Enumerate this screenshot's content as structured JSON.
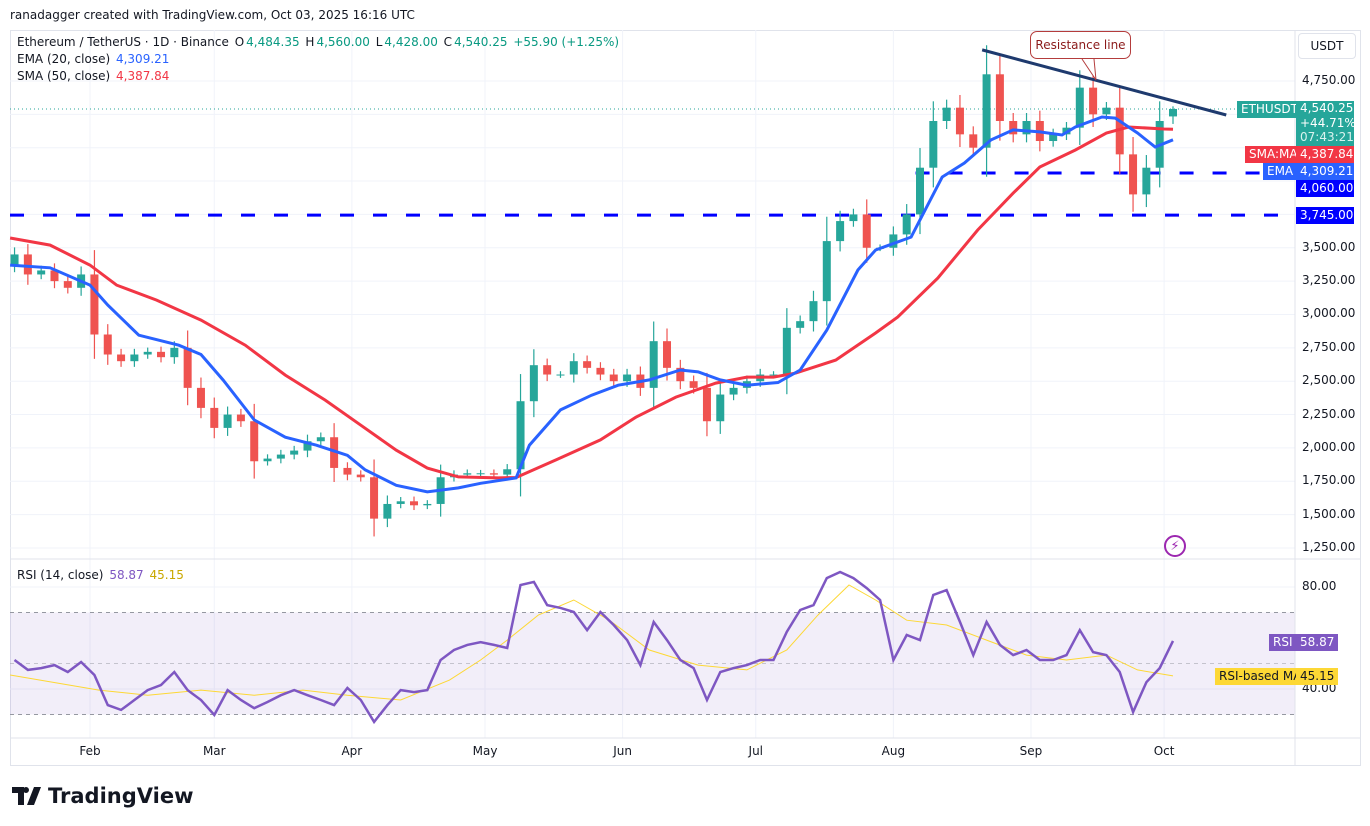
{
  "header": {
    "credit": "ranadagger created with TradingView.com, Oct 03, 2025 16:16 UTC"
  },
  "legend": {
    "symbol": "Ethereum / TetherUS · 1D · Binance",
    "o_label": "O",
    "o": "4,484.35",
    "h_label": "H",
    "h": "4,560.00",
    "l_label": "L",
    "l": "4,428.00",
    "c_label": "C",
    "c": "4,540.25",
    "change": "+55.90 (+1.25%)",
    "ema_label": "EMA (20, close)",
    "ema_value": "4,309.21",
    "sma_label": "SMA (50, close)",
    "sma_value": "4,387.84"
  },
  "price_axis": {
    "currency": "USDT",
    "ticks": [
      "4,750.00",
      "3,500.00",
      "3,250.00",
      "3,000.00",
      "2,750.00",
      "2,500.00",
      "2,250.00",
      "2,000.00",
      "1,750.00",
      "1,500.00",
      "1,250.00"
    ]
  },
  "labels": {
    "symbol": "ETHUSDT",
    "price": "4,540.25",
    "change_pct": "+44.71%",
    "countdown": "07:43:21",
    "sma_tag": "SMA:MA",
    "sma_price": "4,387.84",
    "ema_tag": "EMA",
    "ema_price": "4,309.21",
    "support_high": "4,060.00",
    "support_low": "3,745.00"
  },
  "annotation": {
    "text": "Resistance line"
  },
  "rsi": {
    "legend_label": "RSI (14, close)",
    "value": "58.87",
    "ma_value": "45.15",
    "tag": "RSI",
    "ma_tag": "RSI-based MA",
    "ticks": [
      "80.00",
      "40.00"
    ]
  },
  "time_axis": {
    "labels": [
      "Feb",
      "Mar",
      "Apr",
      "May",
      "Jun",
      "Jul",
      "Aug",
      "Sep",
      "Oct"
    ]
  },
  "branding": {
    "name": "TradingView"
  },
  "colors": {
    "up": "#26a69a",
    "down": "#ef5350",
    "ema": "#2962ff",
    "sma": "#f23645",
    "rsi": "#7e57c2",
    "rsi_ma": "#fdd835",
    "levels": "#0000ff",
    "resistance": "#1e3a6e",
    "accent_green": "#089981"
  },
  "chart_data": {
    "type": "candlestick",
    "ylim": [
      1175,
      5132
    ],
    "y_ticks": [
      1250,
      1500,
      1750,
      2000,
      2250,
      2500,
      2750,
      3000,
      3250,
      3500,
      3750,
      4000,
      4250,
      4500,
      4750
    ],
    "x_ticks": [
      "2025-02-01",
      "2025-03-01",
      "2025-04-01",
      "2025-05-01",
      "2025-06-01",
      "2025-07-01",
      "2025-08-01",
      "2025-09-01",
      "2025-10-01"
    ],
    "candles_columns": [
      "date",
      "close",
      "rsi"
    ],
    "candles": [
      [
        "2025-01-12",
        3370,
        49.4
      ],
      [
        "2025-01-15",
        3450,
        51.4
      ],
      [
        "2025-01-18",
        3300,
        47.5
      ],
      [
        "2025-01-21",
        3330,
        48.2
      ],
      [
        "2025-01-24",
        3250,
        49.4
      ],
      [
        "2025-01-27",
        3200,
        46.7
      ],
      [
        "2025-01-30",
        3300,
        50.6
      ],
      [
        "2025-02-02",
        2850,
        45.5
      ],
      [
        "2025-02-05",
        2700,
        33.7
      ],
      [
        "2025-02-08",
        2650,
        31.8
      ],
      [
        "2025-02-11",
        2700,
        35.7
      ],
      [
        "2025-02-14",
        2720,
        39.6
      ],
      [
        "2025-02-17",
        2680,
        41.6
      ],
      [
        "2025-02-20",
        2750,
        46.7
      ],
      [
        "2025-02-23",
        2450,
        39.6
      ],
      [
        "2025-02-26",
        2300,
        35.7
      ],
      [
        "2025-03-01",
        2150,
        29.8
      ],
      [
        "2025-03-04",
        2250,
        39.6
      ],
      [
        "2025-03-07",
        2200,
        35.7
      ],
      [
        "2025-03-10",
        1900,
        32.5
      ],
      [
        "2025-03-13",
        1920,
        34.9
      ],
      [
        "2025-03-16",
        1950,
        37.6
      ],
      [
        "2025-03-19",
        1980,
        39.6
      ],
      [
        "2025-03-22",
        2050,
        37.6
      ],
      [
        "2025-03-25",
        2080,
        35.7
      ],
      [
        "2025-03-28",
        1850,
        33.7
      ],
      [
        "2025-03-31",
        1800,
        40.4
      ],
      [
        "2025-04-03",
        1780,
        35.7
      ],
      [
        "2025-04-06",
        1470,
        27.1
      ],
      [
        "2025-04-09",
        1580,
        33.7
      ],
      [
        "2025-04-12",
        1600,
        39.6
      ],
      [
        "2025-04-15",
        1570,
        38.8
      ],
      [
        "2025-04-18",
        1580,
        39.6
      ],
      [
        "2025-04-21",
        1780,
        51.4
      ],
      [
        "2025-04-24",
        1800,
        55.3
      ],
      [
        "2025-04-27",
        1810,
        57.3
      ],
      [
        "2025-04-30",
        1810,
        58.4
      ],
      [
        "2025-05-03",
        1800,
        57.3
      ],
      [
        "2025-05-06",
        1840,
        56.1
      ],
      [
        "2025-05-09",
        2350,
        80.8
      ],
      [
        "2025-05-12",
        2620,
        82.0
      ],
      [
        "2025-05-15",
        2550,
        72.9
      ],
      [
        "2025-05-18",
        2550,
        71.8
      ],
      [
        "2025-05-21",
        2650,
        70.2
      ],
      [
        "2025-05-24",
        2600,
        63.1
      ],
      [
        "2025-05-27",
        2550,
        70.2
      ],
      [
        "2025-05-30",
        2500,
        65.1
      ],
      [
        "2025-06-02",
        2550,
        59.2
      ],
      [
        "2025-06-05",
        2450,
        49.4
      ],
      [
        "2025-06-08",
        2800,
        66.3
      ],
      [
        "2025-06-11",
        2600,
        59.2
      ],
      [
        "2025-06-14",
        2500,
        51.4
      ],
      [
        "2025-06-17",
        2450,
        48.2
      ],
      [
        "2025-06-20",
        2200,
        35.7
      ],
      [
        "2025-06-23",
        2400,
        46.7
      ],
      [
        "2025-06-26",
        2450,
        48.2
      ],
      [
        "2025-06-29",
        2500,
        49.4
      ],
      [
        "2025-07-02",
        2550,
        51.4
      ],
      [
        "2025-07-05",
        2550,
        51.4
      ],
      [
        "2025-07-08",
        2900,
        62.4
      ],
      [
        "2025-07-11",
        2950,
        71.0
      ],
      [
        "2025-07-14",
        3100,
        72.9
      ],
      [
        "2025-07-17",
        3550,
        83.5
      ],
      [
        "2025-07-20",
        3700,
        85.9
      ],
      [
        "2025-07-23",
        3750,
        83.5
      ],
      [
        "2025-07-26",
        3500,
        79.6
      ],
      [
        "2025-07-29",
        3500,
        74.9
      ],
      [
        "2025-08-01",
        3600,
        51.4
      ],
      [
        "2025-08-04",
        3750,
        61.2
      ],
      [
        "2025-08-07",
        4100,
        59.2
      ],
      [
        "2025-08-10",
        4450,
        76.9
      ],
      [
        "2025-08-13",
        4550,
        78.8
      ],
      [
        "2025-08-16",
        4350,
        66.3
      ],
      [
        "2025-08-19",
        4250,
        53.3
      ],
      [
        "2025-08-22",
        4800,
        66.3
      ],
      [
        "2025-08-25",
        4450,
        57.3
      ],
      [
        "2025-08-28",
        4350,
        53.3
      ],
      [
        "2025-08-31",
        4450,
        55.3
      ],
      [
        "2025-09-03",
        4300,
        51.4
      ],
      [
        "2025-09-06",
        4350,
        51.4
      ],
      [
        "2025-09-09",
        4400,
        53.3
      ],
      [
        "2025-09-12",
        4700,
        63.1
      ],
      [
        "2025-09-15",
        4500,
        54.5
      ],
      [
        "2025-09-18",
        4550,
        53.3
      ],
      [
        "2025-09-21",
        4200,
        46.7
      ],
      [
        "2025-09-24",
        3900,
        31.0
      ],
      [
        "2025-09-27",
        4100,
        42.7
      ],
      [
        "2025-09-30",
        4450,
        48.2
      ],
      [
        "2025-10-03",
        4540.25,
        58.87
      ]
    ],
    "last_candle": {
      "date": "2025-10-03",
      "open": 4484.35,
      "high": 4560.0,
      "low": 4428.0,
      "close": 4540.25
    },
    "ema20": [
      [
        "2025-01-14",
        3370
      ],
      [
        "2025-01-23",
        3350
      ],
      [
        "2025-02-01",
        3220
      ],
      [
        "2025-02-05",
        3070
      ],
      [
        "2025-02-12",
        2845
      ],
      [
        "2025-02-21",
        2770
      ],
      [
        "2025-02-26",
        2700
      ],
      [
        "2025-03-03",
        2508
      ],
      [
        "2025-03-10",
        2210
      ],
      [
        "2025-03-17",
        2080
      ],
      [
        "2025-03-24",
        2020
      ],
      [
        "2025-03-31",
        1945
      ],
      [
        "2025-04-04",
        1835
      ],
      [
        "2025-04-11",
        1720
      ],
      [
        "2025-04-18",
        1670
      ],
      [
        "2025-04-25",
        1700
      ],
      [
        "2025-04-30",
        1735
      ],
      [
        "2025-05-08",
        1775
      ],
      [
        "2025-05-11",
        2020
      ],
      [
        "2025-05-18",
        2285
      ],
      [
        "2025-05-25",
        2395
      ],
      [
        "2025-05-31",
        2470
      ],
      [
        "2025-06-07",
        2510
      ],
      [
        "2025-06-14",
        2584
      ],
      [
        "2025-06-18",
        2570
      ],
      [
        "2025-06-23",
        2510
      ],
      [
        "2025-06-29",
        2470
      ],
      [
        "2025-07-06",
        2490
      ],
      [
        "2025-07-11",
        2584
      ],
      [
        "2025-07-17",
        2883
      ],
      [
        "2025-07-24",
        3333
      ],
      [
        "2025-07-28",
        3483
      ],
      [
        "2025-08-05",
        3580
      ],
      [
        "2025-08-12",
        4030
      ],
      [
        "2025-08-17",
        4135
      ],
      [
        "2025-08-23",
        4308
      ],
      [
        "2025-08-28",
        4383
      ],
      [
        "2025-09-03",
        4368
      ],
      [
        "2025-09-08",
        4345
      ],
      [
        "2025-09-11",
        4405
      ],
      [
        "2025-09-17",
        4480
      ],
      [
        "2025-09-20",
        4472
      ],
      [
        "2025-09-25",
        4360
      ],
      [
        "2025-09-29",
        4255
      ],
      [
        "2025-10-03",
        4309.21
      ]
    ],
    "sma50": [
      [
        "2025-01-14",
        3573
      ],
      [
        "2025-01-23",
        3520
      ],
      [
        "2025-02-01",
        3370
      ],
      [
        "2025-02-07",
        3220
      ],
      [
        "2025-02-16",
        3108
      ],
      [
        "2025-02-26",
        2958
      ],
      [
        "2025-03-08",
        2770
      ],
      [
        "2025-03-17",
        2546
      ],
      [
        "2025-03-26",
        2358
      ],
      [
        "2025-04-03",
        2170
      ],
      [
        "2025-04-11",
        1983
      ],
      [
        "2025-04-18",
        1849
      ],
      [
        "2025-04-25",
        1783
      ],
      [
        "2025-05-04",
        1775
      ],
      [
        "2025-05-08",
        1778
      ],
      [
        "2025-05-17",
        1910
      ],
      [
        "2025-05-27",
        2060
      ],
      [
        "2025-06-04",
        2230
      ],
      [
        "2025-06-13",
        2381
      ],
      [
        "2025-06-22",
        2486
      ],
      [
        "2025-06-29",
        2531
      ],
      [
        "2025-07-05",
        2531
      ],
      [
        "2025-07-10",
        2561
      ],
      [
        "2025-07-19",
        2658
      ],
      [
        "2025-07-28",
        2861
      ],
      [
        "2025-08-02",
        2981
      ],
      [
        "2025-08-11",
        3273
      ],
      [
        "2025-08-20",
        3633
      ],
      [
        "2025-08-28",
        3910
      ],
      [
        "2025-09-03",
        4105
      ],
      [
        "2025-09-11",
        4233
      ],
      [
        "2025-09-18",
        4360
      ],
      [
        "2025-09-23",
        4405
      ],
      [
        "2025-10-01",
        4390
      ],
      [
        "2025-10-03",
        4387.84
      ]
    ],
    "levels": [
      {
        "value": 4060,
        "from": "2025-08-06"
      },
      {
        "value": 3745,
        "from": "2025-01-12"
      }
    ],
    "resistance_line": [
      [
        "2025-08-21",
        4983
      ],
      [
        "2025-10-15",
        4495
      ]
    ],
    "rsi_ylim": [
      20.8,
      90.6
    ],
    "rsi_bands": [
      30,
      50,
      70
    ],
    "rsi_ma": [
      [
        "2025-01-14",
        45.5
      ],
      [
        "2025-02-03",
        39.6
      ],
      [
        "2025-02-14",
        37.6
      ],
      [
        "2025-02-26",
        39.6
      ],
      [
        "2025-03-10",
        37.6
      ],
      [
        "2025-03-21",
        39.6
      ],
      [
        "2025-03-31",
        37.6
      ],
      [
        "2025-04-12",
        35.7
      ],
      [
        "2025-04-23",
        43.5
      ],
      [
        "2025-04-30",
        51.4
      ],
      [
        "2025-05-06",
        59.2
      ],
      [
        "2025-05-13",
        69.0
      ],
      [
        "2025-05-21",
        74.9
      ],
      [
        "2025-05-29",
        67.0
      ],
      [
        "2025-06-07",
        55.3
      ],
      [
        "2025-06-18",
        49.4
      ],
      [
        "2025-06-29",
        47.5
      ],
      [
        "2025-07-08",
        55.3
      ],
      [
        "2025-07-15",
        69.0
      ],
      [
        "2025-07-22",
        80.8
      ],
      [
        "2025-07-28",
        74.9
      ],
      [
        "2025-08-04",
        67.0
      ],
      [
        "2025-08-13",
        65.1
      ],
      [
        "2025-08-22",
        59.2
      ],
      [
        "2025-08-31",
        53.3
      ],
      [
        "2025-09-09",
        51.4
      ],
      [
        "2025-09-18",
        53.3
      ],
      [
        "2025-09-25",
        47.5
      ],
      [
        "2025-10-03",
        45.15
      ]
    ]
  }
}
